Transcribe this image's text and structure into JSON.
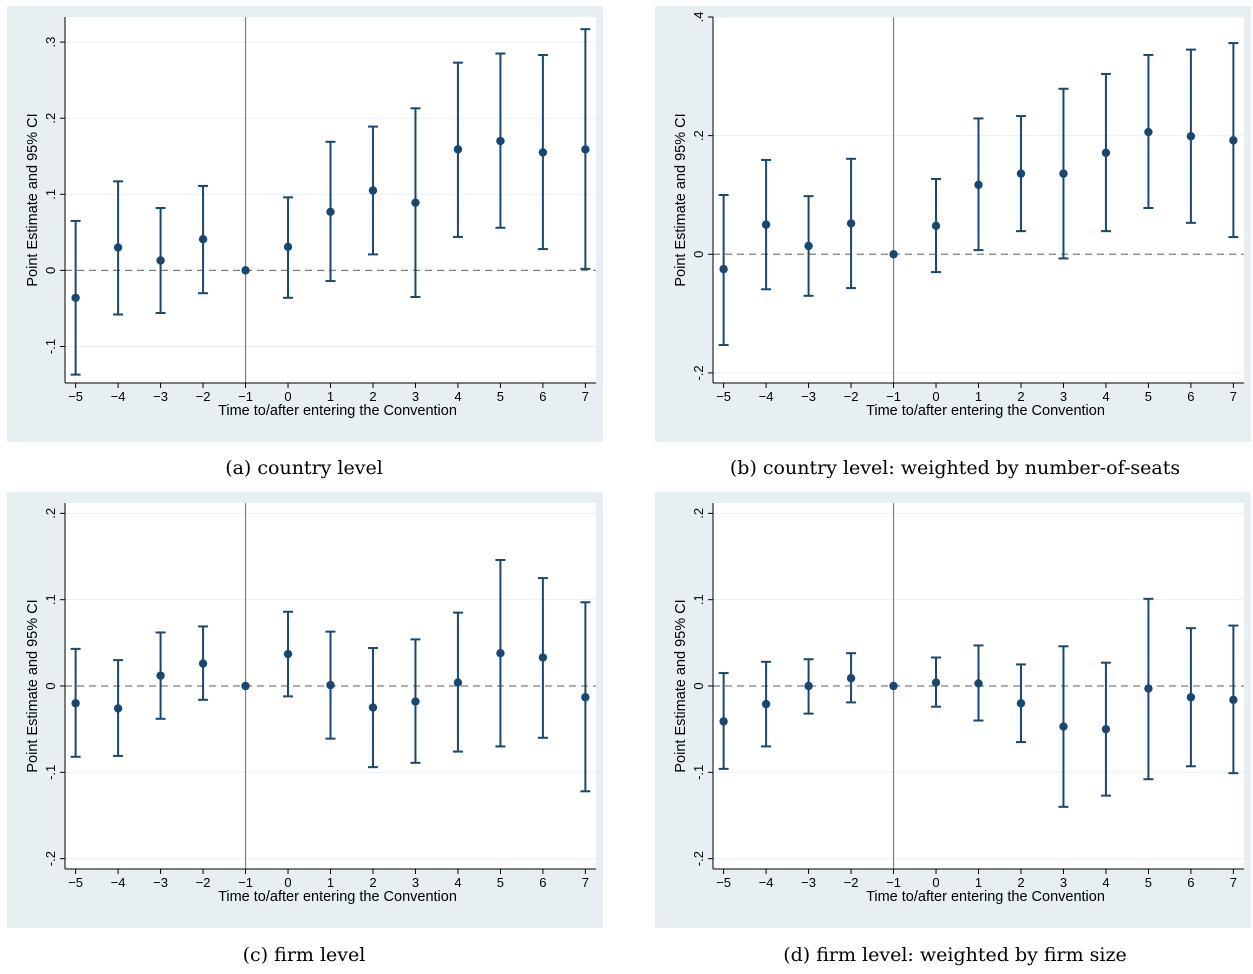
{
  "figure": {
    "captions": [
      "(a) country level",
      "(b) country level: weighted by number-of-seats",
      "(c) firm level",
      "(d) firm level: weighted by firm size"
    ]
  },
  "colors": {
    "panel_background": "#e8eff3",
    "plot_background": "#ffffff",
    "grid": "#e8eff3",
    "marker": "#1a476f",
    "zero_line": "#7f7f7f",
    "event_line": "#7f7f7f"
  },
  "chart_data": [
    {
      "type": "scatter",
      "caption": "(a) country level",
      "xlabel": "Time to/after entering the Convention",
      "ylabel": "Point Estimate and 95% CI",
      "x": [
        -5,
        -4,
        -3,
        -2,
        -1,
        0,
        1,
        2,
        3,
        4,
        5,
        6,
        7
      ],
      "estimate": [
        -0.036,
        0.03,
        0.013,
        0.041,
        0.0,
        0.031,
        0.077,
        0.105,
        0.089,
        0.159,
        0.17,
        0.155,
        0.159
      ],
      "ci_low": [
        -0.137,
        -0.058,
        -0.056,
        -0.03,
        0.0,
        -0.036,
        -0.014,
        0.021,
        -0.035,
        0.044,
        0.056,
        0.028,
        0.002
      ],
      "ci_high": [
        0.065,
        0.117,
        0.082,
        0.111,
        0.0,
        0.096,
        0.169,
        0.189,
        0.213,
        0.273,
        0.285,
        0.283,
        0.317
      ],
      "ylim": [
        -0.148,
        0.333
      ],
      "xlim": [
        -5.25,
        7.25
      ],
      "yticks": [
        -0.1,
        0,
        0.1,
        0.2,
        0.3
      ],
      "ytick_labels": [
        "-.1",
        "0",
        ".1",
        ".2",
        ".3"
      ],
      "xtick_labels": [
        "−5",
        "−4",
        "−3",
        "−2",
        "−1",
        "0",
        "1",
        "2",
        "3",
        "4",
        "5",
        "6",
        "7"
      ],
      "reference_lines": {
        "horizontal_dashed": 0,
        "vertical": -1
      },
      "grid": true
    },
    {
      "type": "scatter",
      "caption": "(b) country level: weighted by number-of-seats",
      "xlabel": "Time to/after entering the Convention",
      "ylabel": "Point Estimate and 95% CI",
      "x": [
        -5,
        -4,
        -3,
        -2,
        -1,
        0,
        1,
        2,
        3,
        4,
        5,
        6,
        7
      ],
      "estimate": [
        -0.025,
        0.05,
        0.014,
        0.052,
        0.0,
        0.048,
        0.117,
        0.136,
        0.136,
        0.171,
        0.206,
        0.199,
        0.192
      ],
      "ci_low": [
        -0.153,
        -0.059,
        -0.07,
        -0.057,
        0.0,
        -0.03,
        0.007,
        0.039,
        -0.007,
        0.039,
        0.078,
        0.053,
        0.029
      ],
      "ci_high": [
        0.1,
        0.159,
        0.098,
        0.161,
        0.0,
        0.127,
        0.229,
        0.233,
        0.279,
        0.304,
        0.336,
        0.345,
        0.356
      ],
      "ylim": [
        -0.217,
        0.4
      ],
      "xlim": [
        -5.25,
        7.25
      ],
      "yticks": [
        -0.2,
        0,
        0.2,
        0.4
      ],
      "ytick_labels": [
        "-.2",
        "0",
        ".2",
        ".4"
      ],
      "xtick_labels": [
        "−5",
        "−4",
        "−3",
        "−2",
        "−1",
        "0",
        "1",
        "2",
        "3",
        "4",
        "5",
        "6",
        "7"
      ],
      "reference_lines": {
        "horizontal_dashed": 0,
        "vertical": -1
      },
      "grid": true
    },
    {
      "type": "scatter",
      "caption": "(c) firm level",
      "xlabel": "Time to/after entering the Convention",
      "ylabel": "Point Estimate and 95% CI",
      "x": [
        -5,
        -4,
        -3,
        -2,
        -1,
        0,
        1,
        2,
        3,
        4,
        5,
        6,
        7
      ],
      "estimate": [
        -0.02,
        -0.026,
        0.012,
        0.026,
        0.0,
        0.037,
        0.001,
        -0.025,
        -0.018,
        0.004,
        0.038,
        0.033,
        -0.013
      ],
      "ci_low": [
        -0.082,
        -0.081,
        -0.038,
        -0.016,
        0.0,
        -0.012,
        -0.061,
        -0.094,
        -0.089,
        -0.076,
        -0.07,
        -0.06,
        -0.122
      ],
      "ci_high": [
        0.043,
        0.03,
        0.062,
        0.069,
        0.0,
        0.086,
        0.063,
        0.044,
        0.054,
        0.085,
        0.146,
        0.125,
        0.097
      ],
      "ylim": [
        -0.212,
        0.212
      ],
      "xlim": [
        -5.25,
        7.25
      ],
      "yticks": [
        -0.2,
        -0.1,
        0,
        0.1,
        0.2
      ],
      "ytick_labels": [
        "-.2",
        "-.1",
        "0",
        ".1",
        ".2"
      ],
      "xtick_labels": [
        "−5",
        "−4",
        "−3",
        "−2",
        "−1",
        "0",
        "1",
        "2",
        "3",
        "4",
        "5",
        "6",
        "7"
      ],
      "reference_lines": {
        "horizontal_dashed": 0,
        "vertical": -1
      },
      "grid": true
    },
    {
      "type": "scatter",
      "caption": "(d) firm level: weighted by firm size",
      "xlabel": "Time to/after entering the Convention",
      "ylabel": "Point Estimate and 95% CI",
      "x": [
        -5,
        -4,
        -3,
        -2,
        -1,
        0,
        1,
        2,
        3,
        4,
        5,
        6,
        7
      ],
      "estimate": [
        -0.041,
        -0.021,
        0.0,
        0.009,
        0.0,
        0.004,
        0.003,
        -0.02,
        -0.047,
        -0.05,
        -0.003,
        -0.013,
        -0.016
      ],
      "ci_low": [
        -0.096,
        -0.07,
        -0.032,
        -0.019,
        0.0,
        -0.024,
        -0.04,
        -0.065,
        -0.14,
        -0.127,
        -0.108,
        -0.093,
        -0.101
      ],
      "ci_high": [
        0.015,
        0.028,
        0.031,
        0.038,
        0.0,
        0.033,
        0.047,
        0.025,
        0.046,
        0.027,
        0.101,
        0.067,
        0.07
      ],
      "ylim": [
        -0.212,
        0.212
      ],
      "xlim": [
        -5.25,
        7.25
      ],
      "yticks": [
        -0.2,
        -0.1,
        0,
        0.1,
        0.2
      ],
      "ytick_labels": [
        "-.2",
        "-.1",
        "0",
        ".1",
        ".2"
      ],
      "xtick_labels": [
        "−5",
        "−4",
        "−3",
        "−2",
        "−1",
        "0",
        "1",
        "2",
        "3",
        "4",
        "5",
        "6",
        "7"
      ],
      "reference_lines": {
        "horizontal_dashed": 0,
        "vertical": -1
      },
      "grid": true
    }
  ]
}
